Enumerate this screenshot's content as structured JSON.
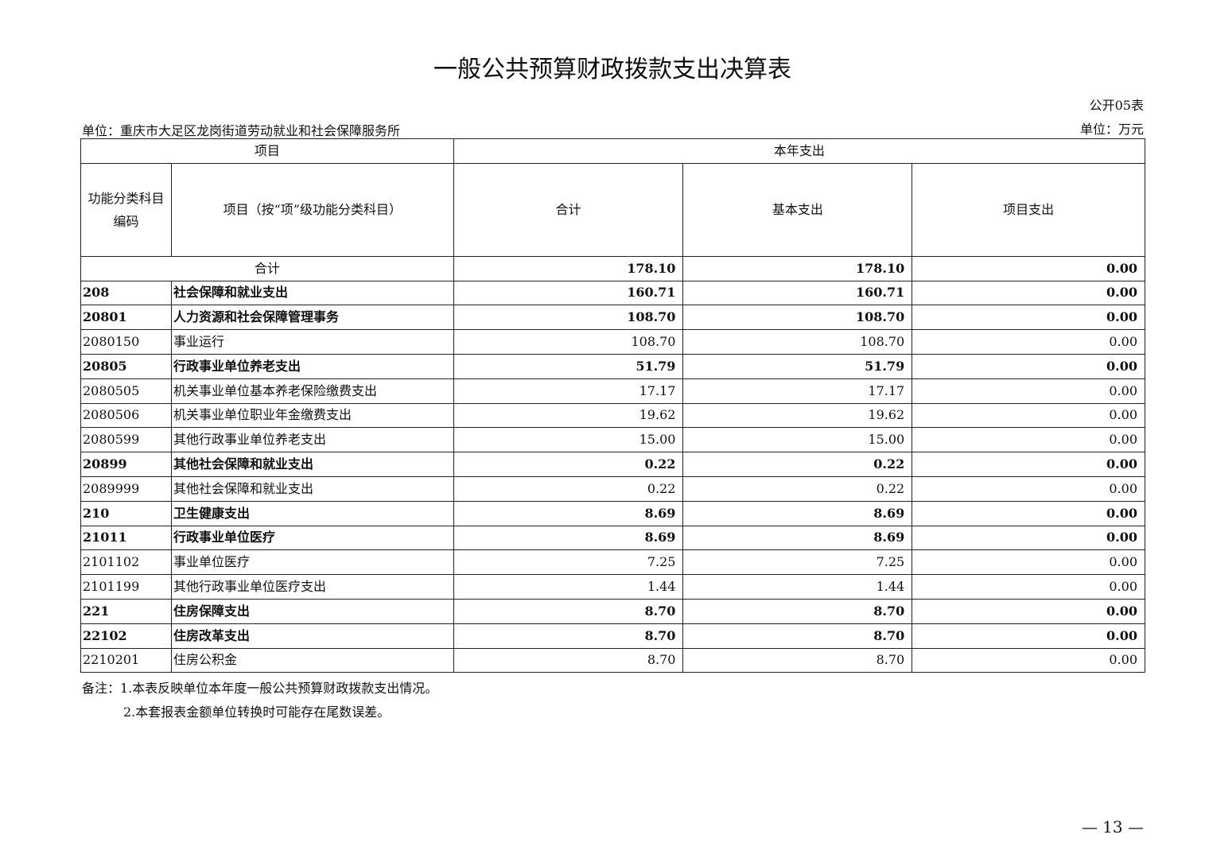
{
  "title": "一般公共预算财政拨款支出决算表",
  "form_no": "公开05表",
  "unit_org": "单位：重庆市大足区龙岗街道劳动就业和社会保障服务所",
  "unit_currency": "单位：万元",
  "header": {
    "group_item": "项目",
    "group_expense": "本年支出",
    "code": "功能分类科目编码",
    "name": "项目（按“项”级功能分类科目）",
    "total": "合计",
    "basic": "基本支出",
    "project": "项目支出"
  },
  "total_row": {
    "label": "合计",
    "total": "178.10",
    "basic": "178.10",
    "project": "0.00"
  },
  "rows": [
    {
      "code": "208",
      "name": "社会保障和就业支出",
      "total": "160.71",
      "basic": "160.71",
      "project": "0.00",
      "bold": true
    },
    {
      "code": "20801",
      "name": "人力资源和社会保障管理事务",
      "total": "108.70",
      "basic": "108.70",
      "project": "0.00",
      "bold": true
    },
    {
      "code": "2080150",
      "name": "事业运行",
      "total": "108.70",
      "basic": "108.70",
      "project": "0.00",
      "bold": false
    },
    {
      "code": "20805",
      "name": "行政事业单位养老支出",
      "total": "51.79",
      "basic": "51.79",
      "project": "0.00",
      "bold": true
    },
    {
      "code": "2080505",
      "name": "机关事业单位基本养老保险缴费支出",
      "total": "17.17",
      "basic": "17.17",
      "project": "0.00",
      "bold": false
    },
    {
      "code": "2080506",
      "name": "机关事业单位职业年金缴费支出",
      "total": "19.62",
      "basic": "19.62",
      "project": "0.00",
      "bold": false
    },
    {
      "code": "2080599",
      "name": "其他行政事业单位养老支出",
      "total": "15.00",
      "basic": "15.00",
      "project": "0.00",
      "bold": false
    },
    {
      "code": "20899",
      "name": "其他社会保障和就业支出",
      "total": "0.22",
      "basic": "0.22",
      "project": "0.00",
      "bold": true
    },
    {
      "code": "2089999",
      "name": "其他社会保障和就业支出",
      "total": "0.22",
      "basic": "0.22",
      "project": "0.00",
      "bold": false
    },
    {
      "code": "210",
      "name": "卫生健康支出",
      "total": "8.69",
      "basic": "8.69",
      "project": "0.00",
      "bold": true
    },
    {
      "code": "21011",
      "name": "行政事业单位医疗",
      "total": "8.69",
      "basic": "8.69",
      "project": "0.00",
      "bold": true
    },
    {
      "code": "2101102",
      "name": "事业单位医疗",
      "total": "7.25",
      "basic": "7.25",
      "project": "0.00",
      "bold": false
    },
    {
      "code": "2101199",
      "name": "其他行政事业单位医疗支出",
      "total": "1.44",
      "basic": "1.44",
      "project": "0.00",
      "bold": false
    },
    {
      "code": "221",
      "name": "住房保障支出",
      "total": "8.70",
      "basic": "8.70",
      "project": "0.00",
      "bold": true
    },
    {
      "code": "22102",
      "name": "住房改革支出",
      "total": "8.70",
      "basic": "8.70",
      "project": "0.00",
      "bold": true
    },
    {
      "code": "2210201",
      "name": "住房公积金",
      "total": "8.70",
      "basic": "8.70",
      "project": "0.00",
      "bold": false
    }
  ],
  "notes": {
    "line1": "备注：1.本表反映单位本年度一般公共预算财政拨款支出情况。",
    "line2": "2.本套报表金额单位转换时可能存在尾数误差。"
  },
  "page_number": "— 13 —"
}
